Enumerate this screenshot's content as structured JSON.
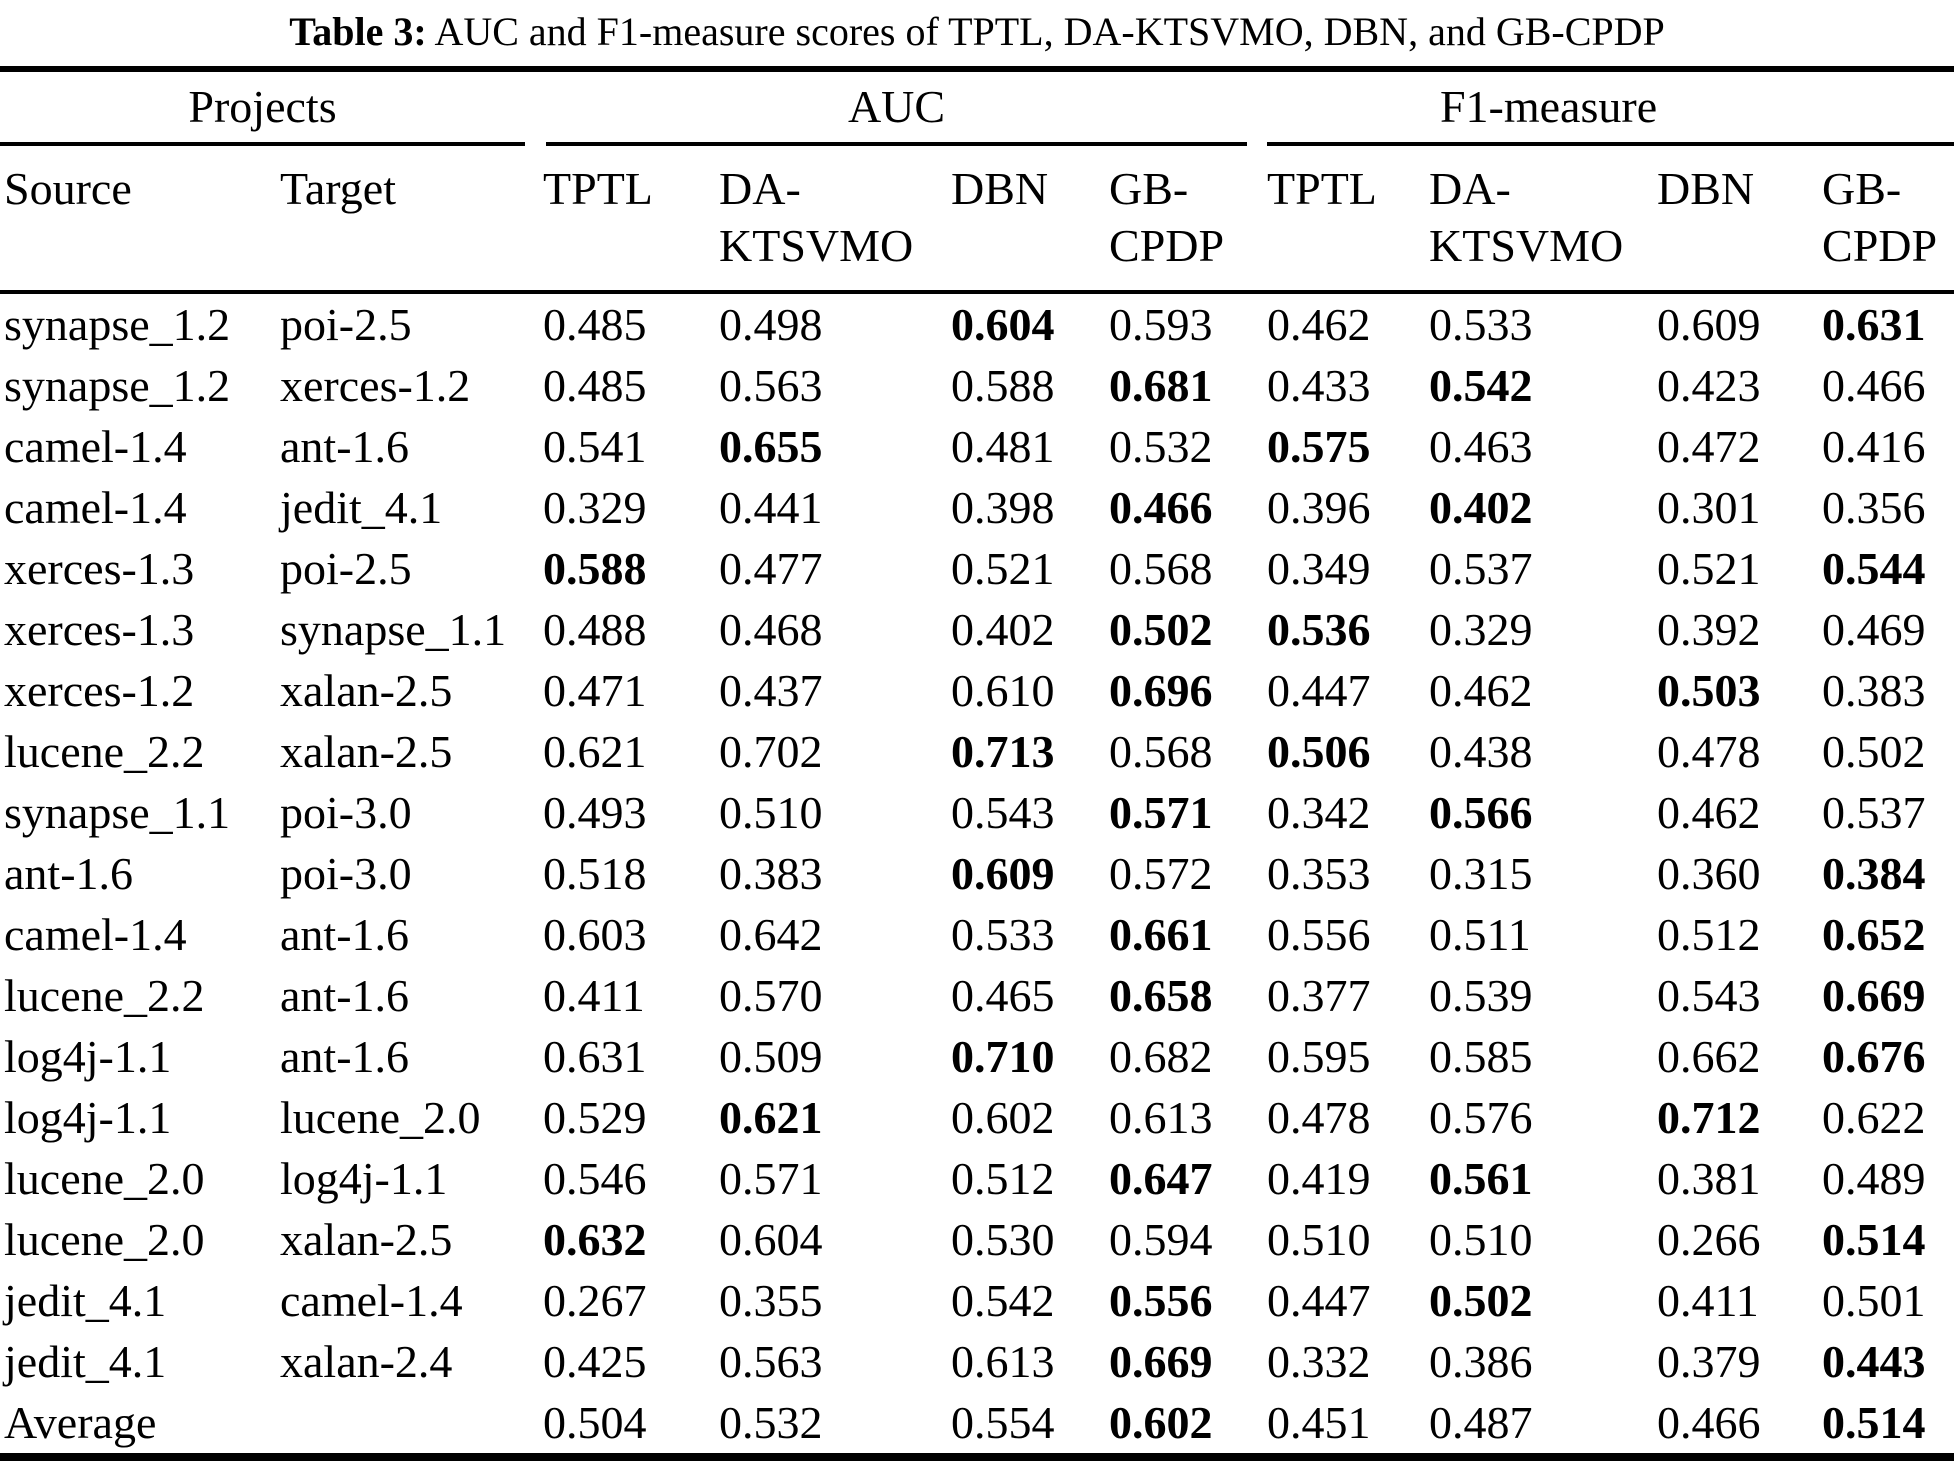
{
  "caption": {
    "label": "Table 3:",
    "text": "AUC and F1-measure scores of TPTL, DA-KTSVMO, DBN, and GB-CPDP"
  },
  "colors": {
    "background": "#ffffff",
    "text": "#000000",
    "rule": "#000000"
  },
  "chart_data": {
    "type": "table",
    "group_headers": [
      "Projects",
      "AUC",
      "F1-measure"
    ],
    "columns": [
      "Source",
      "Target",
      "TPTL",
      "DA-KTSVMO",
      "DBN",
      "GB-CPDP",
      "TPTL",
      "DA-KTSVMO",
      "DBN",
      "GB-CPDP"
    ],
    "rows": [
      {
        "source": "synapse_1.2",
        "target": "poi-2.5",
        "auc": [
          "0.485",
          "0.498",
          "0.604",
          "0.593"
        ],
        "auc_bold": [
          false,
          false,
          true,
          false
        ],
        "f1": [
          "0.462",
          "0.533",
          "0.609",
          "0.631"
        ],
        "f1_bold": [
          false,
          false,
          false,
          true
        ]
      },
      {
        "source": "synapse_1.2",
        "target": "xerces-1.2",
        "auc": [
          "0.485",
          "0.563",
          "0.588",
          "0.681"
        ],
        "auc_bold": [
          false,
          false,
          false,
          true
        ],
        "f1": [
          "0.433",
          "0.542",
          "0.423",
          "0.466"
        ],
        "f1_bold": [
          false,
          true,
          false,
          false
        ]
      },
      {
        "source": "camel-1.4",
        "target": "ant-1.6",
        "auc": [
          "0.541",
          "0.655",
          "0.481",
          "0.532"
        ],
        "auc_bold": [
          false,
          true,
          false,
          false
        ],
        "f1": [
          "0.575",
          "0.463",
          "0.472",
          "0.416"
        ],
        "f1_bold": [
          true,
          false,
          false,
          false
        ]
      },
      {
        "source": "camel-1.4",
        "target": "jedit_4.1",
        "auc": [
          "0.329",
          "0.441",
          "0.398",
          "0.466"
        ],
        "auc_bold": [
          false,
          false,
          false,
          true
        ],
        "f1": [
          "0.396",
          "0.402",
          "0.301",
          "0.356"
        ],
        "f1_bold": [
          false,
          true,
          false,
          false
        ]
      },
      {
        "source": "xerces-1.3",
        "target": "poi-2.5",
        "auc": [
          "0.588",
          "0.477",
          "0.521",
          "0.568"
        ],
        "auc_bold": [
          true,
          false,
          false,
          false
        ],
        "f1": [
          "0.349",
          "0.537",
          "0.521",
          "0.544"
        ],
        "f1_bold": [
          false,
          false,
          false,
          true
        ]
      },
      {
        "source": "xerces-1.3",
        "target": "synapse_1.1",
        "auc": [
          "0.488",
          "0.468",
          "0.402",
          "0.502"
        ],
        "auc_bold": [
          false,
          false,
          false,
          true
        ],
        "f1": [
          "0.536",
          "0.329",
          "0.392",
          "0.469"
        ],
        "f1_bold": [
          true,
          false,
          false,
          false
        ]
      },
      {
        "source": "xerces-1.2",
        "target": "xalan-2.5",
        "auc": [
          "0.471",
          "0.437",
          "0.610",
          "0.696"
        ],
        "auc_bold": [
          false,
          false,
          false,
          true
        ],
        "f1": [
          "0.447",
          "0.462",
          "0.503",
          "0.383"
        ],
        "f1_bold": [
          false,
          false,
          true,
          false
        ]
      },
      {
        "source": "lucene_2.2",
        "target": "xalan-2.5",
        "auc": [
          "0.621",
          "0.702",
          "0.713",
          "0.568"
        ],
        "auc_bold": [
          false,
          false,
          true,
          false
        ],
        "f1": [
          "0.506",
          "0.438",
          "0.478",
          "0.502"
        ],
        "f1_bold": [
          true,
          false,
          false,
          false
        ]
      },
      {
        "source": "synapse_1.1",
        "target": "poi-3.0",
        "auc": [
          "0.493",
          "0.510",
          "0.543",
          "0.571"
        ],
        "auc_bold": [
          false,
          false,
          false,
          true
        ],
        "f1": [
          "0.342",
          "0.566",
          "0.462",
          "0.537"
        ],
        "f1_bold": [
          false,
          true,
          false,
          false
        ]
      },
      {
        "source": "ant-1.6",
        "target": "poi-3.0",
        "auc": [
          "0.518",
          "0.383",
          "0.609",
          "0.572"
        ],
        "auc_bold": [
          false,
          false,
          true,
          false
        ],
        "f1": [
          "0.353",
          "0.315",
          "0.360",
          "0.384"
        ],
        "f1_bold": [
          false,
          false,
          false,
          true
        ]
      },
      {
        "source": "camel-1.4",
        "target": "ant-1.6",
        "auc": [
          "0.603",
          "0.642",
          "0.533",
          "0.661"
        ],
        "auc_bold": [
          false,
          false,
          false,
          true
        ],
        "f1": [
          "0.556",
          "0.511",
          "0.512",
          "0.652"
        ],
        "f1_bold": [
          false,
          false,
          false,
          true
        ]
      },
      {
        "source": "lucene_2.2",
        "target": "ant-1.6",
        "auc": [
          "0.411",
          "0.570",
          "0.465",
          "0.658"
        ],
        "auc_bold": [
          false,
          false,
          false,
          true
        ],
        "f1": [
          "0.377",
          "0.539",
          "0.543",
          "0.669"
        ],
        "f1_bold": [
          false,
          false,
          false,
          true
        ]
      },
      {
        "source": "log4j-1.1",
        "target": "ant-1.6",
        "auc": [
          "0.631",
          "0.509",
          "0.710",
          "0.682"
        ],
        "auc_bold": [
          false,
          false,
          true,
          false
        ],
        "f1": [
          "0.595",
          "0.585",
          "0.662",
          "0.676"
        ],
        "f1_bold": [
          false,
          false,
          false,
          true
        ]
      },
      {
        "source": "log4j-1.1",
        "target": "lucene_2.0",
        "auc": [
          "0.529",
          "0.621",
          "0.602",
          "0.613"
        ],
        "auc_bold": [
          false,
          true,
          false,
          false
        ],
        "f1": [
          "0.478",
          "0.576",
          "0.712",
          "0.622"
        ],
        "f1_bold": [
          false,
          false,
          true,
          false
        ]
      },
      {
        "source": "lucene_2.0",
        "target": "log4j-1.1",
        "auc": [
          "0.546",
          "0.571",
          "0.512",
          "0.647"
        ],
        "auc_bold": [
          false,
          false,
          false,
          true
        ],
        "f1": [
          "0.419",
          "0.561",
          "0.381",
          "0.489"
        ],
        "f1_bold": [
          false,
          true,
          false,
          false
        ]
      },
      {
        "source": "lucene_2.0",
        "target": "xalan-2.5",
        "auc": [
          "0.632",
          "0.604",
          "0.530",
          "0.594"
        ],
        "auc_bold": [
          true,
          false,
          false,
          false
        ],
        "f1": [
          "0.510",
          "0.510",
          "0.266",
          "0.514"
        ],
        "f1_bold": [
          false,
          false,
          false,
          true
        ]
      },
      {
        "source": "jedit_4.1",
        "target": "camel-1.4",
        "auc": [
          "0.267",
          "0.355",
          "0.542",
          "0.556"
        ],
        "auc_bold": [
          false,
          false,
          false,
          true
        ],
        "f1": [
          "0.447",
          "0.502",
          "0.411",
          "0.501"
        ],
        "f1_bold": [
          false,
          true,
          false,
          false
        ]
      },
      {
        "source": "jedit_4.1",
        "target": "xalan-2.4",
        "auc": [
          "0.425",
          "0.563",
          "0.613",
          "0.669"
        ],
        "auc_bold": [
          false,
          false,
          false,
          true
        ],
        "f1": [
          "0.332",
          "0.386",
          "0.379",
          "0.443"
        ],
        "f1_bold": [
          false,
          false,
          false,
          true
        ]
      },
      {
        "source": "Average",
        "target": "",
        "auc": [
          "0.504",
          "0.532",
          "0.554",
          "0.602"
        ],
        "auc_bold": [
          false,
          false,
          false,
          true
        ],
        "f1": [
          "0.451",
          "0.487",
          "0.466",
          "0.514"
        ],
        "f1_bold": [
          false,
          false,
          false,
          true
        ]
      }
    ]
  }
}
